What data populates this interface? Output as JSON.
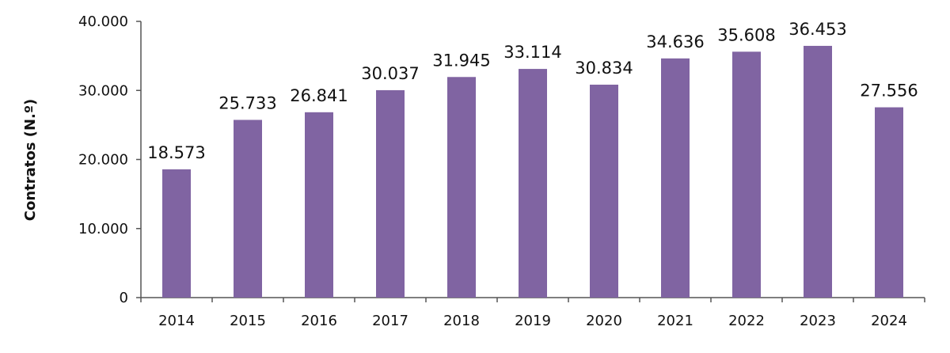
{
  "chart_data": {
    "type": "bar",
    "title": "",
    "xlabel": "",
    "ylabel": "Contratos (N.º)",
    "categories": [
      "2014",
      "2015",
      "2016",
      "2017",
      "2018",
      "2019",
      "2020",
      "2021",
      "2022",
      "2023",
      "2024"
    ],
    "values": [
      18573,
      25733,
      26841,
      30037,
      31945,
      33114,
      30834,
      34636,
      35608,
      36453,
      27556
    ],
    "value_labels": [
      "18.573",
      "25.733",
      "26.841",
      "30.037",
      "31.945",
      "33.114",
      "30.834",
      "34.636",
      "35.608",
      "36.453",
      "27.556"
    ],
    "ylim": [
      0,
      40000
    ],
    "yticks": [
      0,
      10000,
      20000,
      30000,
      40000
    ],
    "ytick_labels": [
      "0",
      "10.000",
      "20.000",
      "30.000",
      "40.000"
    ],
    "grid": false,
    "bar_color": "#8064a2"
  }
}
